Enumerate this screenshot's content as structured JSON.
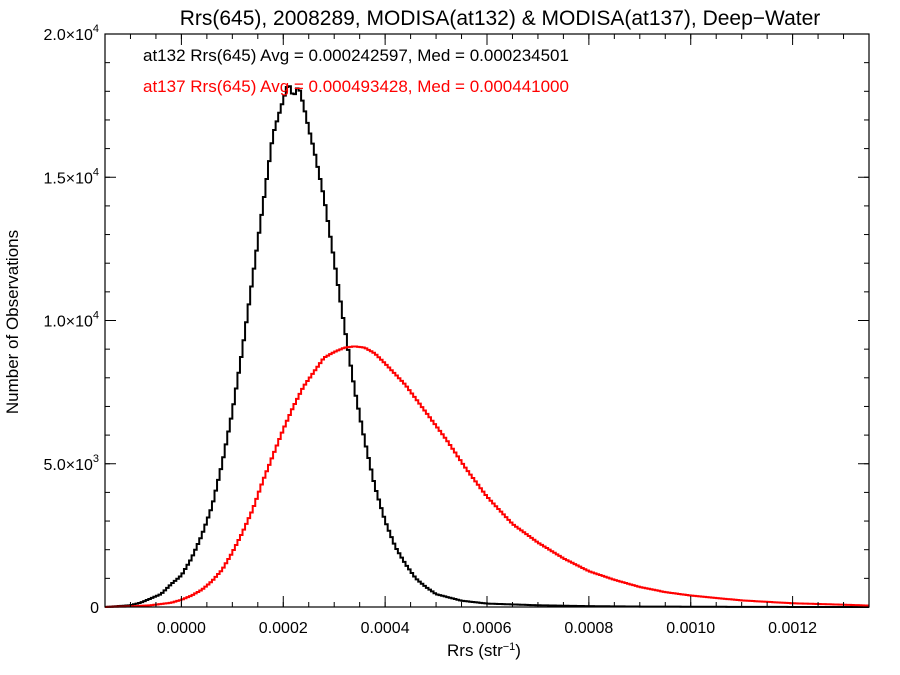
{
  "chart_data": {
    "type": "line",
    "title": "Rrs(645), 2008289, MODISA(at132) & MODISA(at137), Deep−Water",
    "xlabel": "Rrs (str",
    "xlabel_sup": "−1",
    "xlabel_end": ")",
    "ylabel": "Number of Observations",
    "xlim": [
      -0.00015,
      0.00135
    ],
    "ylim": [
      0,
      20000
    ],
    "x_ticks": [
      {
        "value": 0.0,
        "label": "0.0000"
      },
      {
        "value": 0.0002,
        "label": "0.0002"
      },
      {
        "value": 0.0004,
        "label": "0.0004"
      },
      {
        "value": 0.0006,
        "label": "0.0006"
      },
      {
        "value": 0.0008,
        "label": "0.0008"
      },
      {
        "value": 0.001,
        "label": "0.0010"
      },
      {
        "value": 0.0012,
        "label": "0.0012"
      }
    ],
    "y_ticks": [
      {
        "value": 0,
        "mant": "0",
        "exp": ""
      },
      {
        "value": 5000,
        "mant": "5.0×10",
        "exp": "3"
      },
      {
        "value": 10000,
        "mant": "1.0×10",
        "exp": "4"
      },
      {
        "value": 15000,
        "mant": "1.5×10",
        "exp": "4"
      },
      {
        "value": 20000,
        "mant": "2.0×10",
        "exp": "4"
      }
    ],
    "annotations": [
      {
        "text": "at132 Rrs(645) Avg = 0.000242597, Med = 0.000234501",
        "color": "#000000"
      },
      {
        "text": "at137 Rrs(645) Avg = 0.000493428, Med = 0.000441000",
        "color": "#ff0000"
      }
    ],
    "series": [
      {
        "color": "#000000",
        "x": [
          -0.00015,
          -0.0001,
          -8e-05,
          -6e-05,
          -4e-05,
          -2e-05,
          0.0,
          2e-05,
          4e-05,
          6e-05,
          8e-05,
          0.0001,
          0.00012,
          0.00014,
          0.00016,
          0.00018,
          0.0002,
          0.00021,
          0.00022,
          0.00023,
          0.00024,
          0.00025,
          0.00026,
          0.00028,
          0.0003,
          0.00032,
          0.00034,
          0.00036,
          0.00038,
          0.0004,
          0.00042,
          0.00044,
          0.00046,
          0.00048,
          0.0005,
          0.00055,
          0.0006,
          0.0007,
          0.0008,
          0.0009,
          0.001,
          0.0011,
          0.0012,
          0.00135
        ],
        "y": [
          0,
          60,
          150,
          300,
          450,
          800,
          1100,
          1700,
          2500,
          3500,
          5000,
          6800,
          9000,
          11500,
          14000,
          16500,
          17700,
          18300,
          17800,
          18200,
          17500,
          16700,
          16000,
          14300,
          12100,
          9800,
          7600,
          5800,
          4200,
          3000,
          2100,
          1500,
          1000,
          700,
          450,
          220,
          120,
          60,
          30,
          15,
          10,
          5,
          2,
          0
        ]
      },
      {
        "color": "#ff0000",
        "x": [
          -0.00015,
          -0.0001,
          -6e-05,
          -2e-05,
          0.0,
          2e-05,
          4e-05,
          6e-05,
          8e-05,
          0.0001,
          0.00012,
          0.00014,
          0.00016,
          0.00018,
          0.0002,
          0.00022,
          0.00024,
          0.00026,
          0.00028,
          0.0003,
          0.00032,
          0.00034,
          0.00036,
          0.00038,
          0.0004,
          0.00044,
          0.00048,
          0.00052,
          0.00056,
          0.0006,
          0.00065,
          0.0007,
          0.00075,
          0.0008,
          0.00085,
          0.0009,
          0.00095,
          0.001,
          0.0011,
          0.0012,
          0.0013,
          0.00135
        ],
        "y": [
          0,
          20,
          60,
          150,
          250,
          400,
          600,
          900,
          1300,
          1900,
          2600,
          3400,
          4400,
          5300,
          6200,
          7000,
          7700,
          8200,
          8700,
          8900,
          9050,
          9100,
          9050,
          8850,
          8500,
          7750,
          6800,
          5850,
          4800,
          3850,
          2900,
          2250,
          1700,
          1250,
          950,
          700,
          520,
          400,
          230,
          130,
          80,
          50
        ]
      }
    ]
  }
}
